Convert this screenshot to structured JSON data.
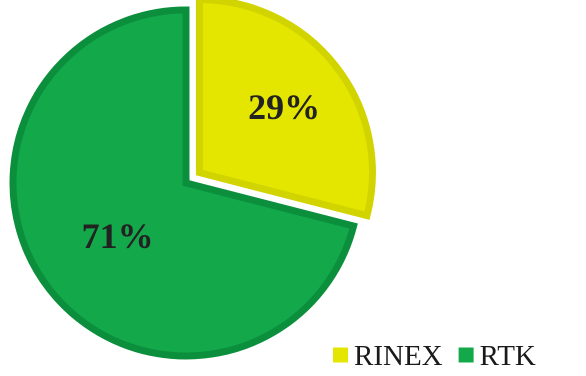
{
  "chart_data": {
    "type": "pie",
    "exploded": "RINEX",
    "legend_position": "bottom-right",
    "slices": [
      {
        "name": "RINEX",
        "value": 29,
        "label": "29%",
        "fill": "#e5e600",
        "stroke": "#d2d400"
      },
      {
        "name": "RTK",
        "value": 71,
        "label": "71%",
        "fill": "#13a94b",
        "stroke": "#0b8f3c"
      }
    ]
  }
}
